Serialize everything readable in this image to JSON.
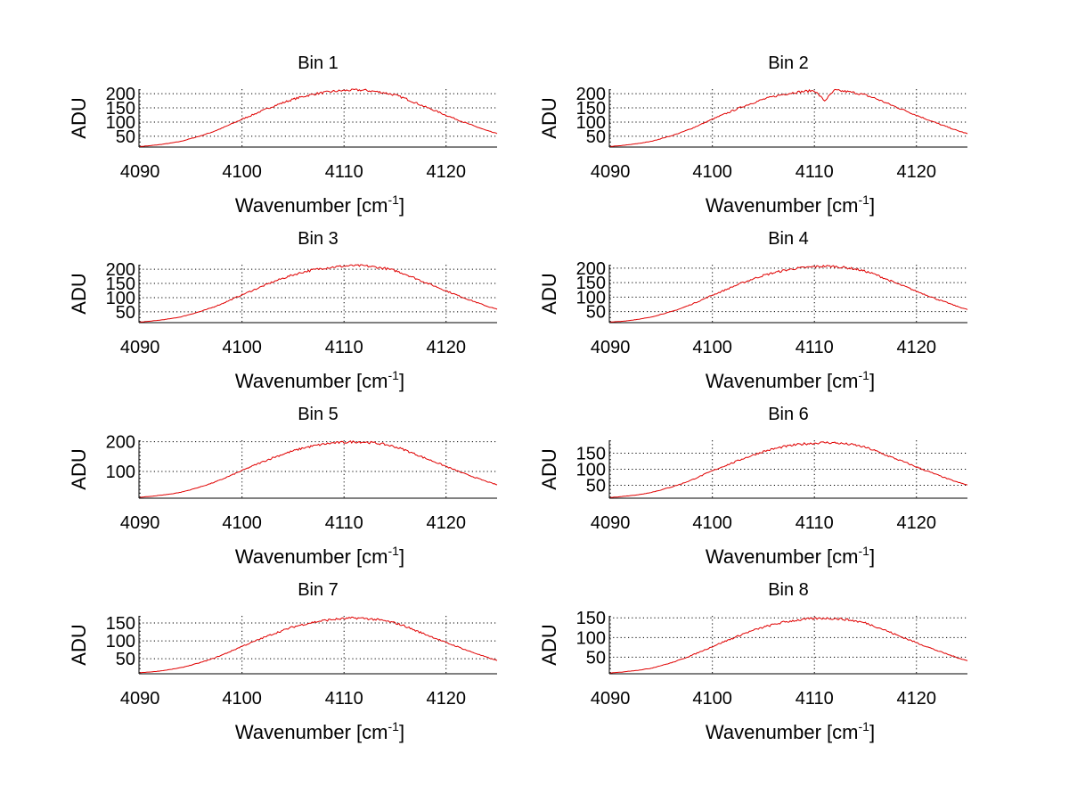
{
  "chart_data": {
    "type": "line",
    "layout": "4x2 subplots",
    "x": [
      4090,
      4091,
      4092,
      4093,
      4094,
      4095,
      4096,
      4097,
      4098,
      4099,
      4100,
      4101,
      4102,
      4103,
      4104,
      4105,
      4106,
      4107,
      4108,
      4109,
      4110,
      4111,
      4112,
      4113,
      4114,
      4115,
      4116,
      4117,
      4118,
      4119,
      4120,
      4121,
      4122,
      4123,
      4124,
      4125
    ],
    "xlim": [
      4089.9,
      4125
    ],
    "xticks": [
      4090,
      4100,
      4110,
      4120
    ],
    "xlabel": "Wavenumber [cm",
    "xlabel_sup": "-1",
    "xlabel_close": "]",
    "ylabel": "ADU",
    "grid": true,
    "line_color": "#e00000",
    "subplots": [
      {
        "title": "Bin 1",
        "ylim": [
          12,
          216
        ],
        "yticks": [
          50,
          100,
          150,
          200
        ],
        "values": [
          14,
          17,
          21,
          26,
          32,
          42,
          52,
          64,
          78,
          94,
          110,
          125,
          140,
          155,
          168,
          180,
          190,
          198,
          204,
          208,
          211,
          213,
          212,
          208,
          203,
          195,
          183,
          168,
          153,
          139,
          124,
          110,
          96,
          83,
          70,
          59
        ]
      },
      {
        "title": "Bin 2",
        "ylim": [
          12,
          216
        ],
        "yticks": [
          50,
          100,
          150,
          200
        ],
        "values": [
          14,
          17,
          21,
          26,
          32,
          42,
          52,
          64,
          78,
          94,
          110,
          125,
          140,
          155,
          168,
          180,
          190,
          198,
          204,
          208,
          211,
          175,
          212,
          208,
          203,
          195,
          183,
          168,
          153,
          139,
          124,
          110,
          96,
          83,
          70,
          59
        ]
      },
      {
        "title": "Bin 3",
        "ylim": [
          12,
          216
        ],
        "yticks": [
          50,
          100,
          150,
          200
        ],
        "values": [
          14,
          17,
          21,
          26,
          32,
          42,
          52,
          64,
          78,
          94,
          110,
          125,
          140,
          155,
          168,
          180,
          190,
          198,
          204,
          208,
          211,
          213,
          212,
          208,
          203,
          195,
          183,
          168,
          153,
          139,
          124,
          110,
          96,
          83,
          70,
          59
        ]
      },
      {
        "title": "Bin 4",
        "ylim": [
          12,
          212
        ],
        "yticks": [
          50,
          100,
          150,
          200
        ],
        "values": [
          14,
          16,
          20,
          25,
          31,
          41,
          50,
          62,
          76,
          91,
          107,
          121,
          136,
          150,
          163,
          175,
          184,
          192,
          198,
          202,
          205,
          207,
          206,
          202,
          197,
          189,
          178,
          163,
          148,
          135,
          120,
          107,
          93,
          81,
          68,
          57
        ]
      },
      {
        "title": "Bin 5",
        "ylim": [
          10,
          205
        ],
        "yticks": [
          100,
          200
        ],
        "values": [
          13,
          16,
          20,
          24,
          30,
          39,
          49,
          60,
          73,
          88,
          103,
          118,
          132,
          146,
          158,
          169,
          179,
          186,
          192,
          196,
          198,
          200,
          199,
          196,
          191,
          183,
          172,
          158,
          144,
          131,
          117,
          103,
          90,
          78,
          66,
          55
        ]
      },
      {
        "title": "Bin 6",
        "ylim": [
          10,
          190
        ],
        "yticks": [
          50,
          100,
          150
        ],
        "values": [
          12,
          15,
          18,
          22,
          28,
          36,
          45,
          55,
          67,
          81,
          95,
          108,
          120,
          133,
          144,
          155,
          163,
          170,
          175,
          179,
          181,
          183,
          182,
          179,
          175,
          168,
          157,
          144,
          132,
          120,
          107,
          95,
          83,
          71,
          60,
          51
        ]
      },
      {
        "title": "Bin 7",
        "ylim": [
          8,
          170
        ],
        "yticks": [
          50,
          100,
          150
        ],
        "values": [
          11,
          13,
          16,
          20,
          25,
          32,
          40,
          49,
          60,
          72,
          85,
          96,
          108,
          119,
          129,
          139,
          146,
          152,
          157,
          160,
          162,
          164,
          163,
          160,
          156,
          150,
          141,
          129,
          118,
          107,
          95,
          85,
          74,
          64,
          54,
          45
        ]
      },
      {
        "title": "Bin 8",
        "ylim": [
          8,
          155
        ],
        "yticks": [
          50,
          100,
          150
        ],
        "values": [
          10,
          12,
          15,
          18,
          22,
          29,
          36,
          45,
          55,
          66,
          77,
          88,
          98,
          109,
          118,
          126,
          133,
          139,
          143,
          146,
          148,
          149,
          148,
          146,
          142,
          137,
          128,
          118,
          107,
          97,
          87,
          77,
          67,
          58,
          49,
          41
        ]
      }
    ]
  }
}
